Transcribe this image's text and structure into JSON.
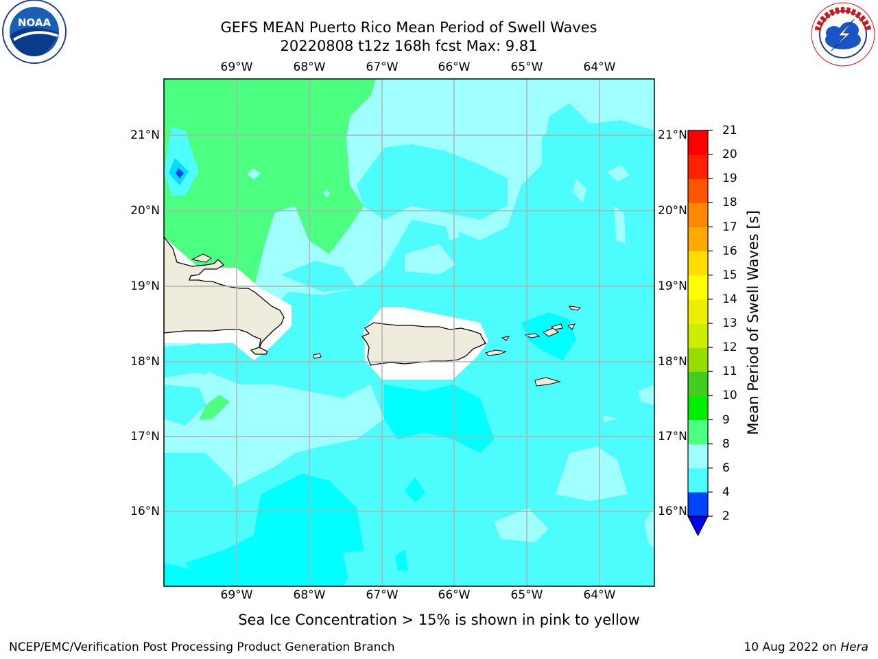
{
  "header": {
    "title_line1": "GEFS MEAN Puerto Rico Mean Period of Swell Waves",
    "title_line2": "20220808 t12z 168h fcst   Max: 9.81"
  },
  "map": {
    "longitude_labels": [
      "69°W",
      "68°W",
      "67°W",
      "66°W",
      "65°W",
      "64°W"
    ],
    "latitude_labels": [
      "21°N",
      "20°N",
      "19°N",
      "18°N",
      "17°N",
      "16°N"
    ],
    "land_color": "#efecdd",
    "ocean_base_color": "#4dfdfd"
  },
  "colorbar": {
    "title": "Mean Period of Swell Waves [s]",
    "tick_labels": [
      "2",
      "4",
      "6",
      "8",
      "9",
      "10",
      "11",
      "12",
      "13",
      "14",
      "15",
      "16",
      "17",
      "18",
      "19",
      "20",
      "21"
    ],
    "colors": [
      "#0044ff",
      "#00ddff",
      "#4dfdfd",
      "#a0ffff",
      "#4dff80",
      "#00ee00",
      "#44cc22",
      "#99dd00",
      "#ccee00",
      "#eeee00",
      "#ffff00",
      "#ffdd00",
      "#ffaa00",
      "#ff8800",
      "#ff5500",
      "#ff2200",
      "#ff0000"
    ],
    "under_color": "#0000ee"
  },
  "footer": {
    "note": "Sea Ice Concentration > 15% is shown in pink to yellow",
    "credit_left": "NCEP/EMC/Verification Post Processing Product Generation Branch",
    "credit_date": "10 Aug 2022 on ",
    "credit_machine": "Hera"
  },
  "logos": {
    "left": "noaa-logo",
    "right": "national-weather-service-logo",
    "left_text": "NOAA",
    "right_text": "NATIONAL WEATHER SERVICE"
  }
}
